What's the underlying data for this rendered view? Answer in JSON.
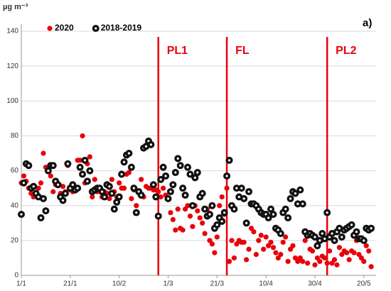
{
  "chart_data": {
    "type": "scatter",
    "y_label": "µg m⁻³",
    "panel_label": "a)",
    "xlim": [
      0,
      145
    ],
    "ylim": [
      0,
      140
    ],
    "xticks": [
      {
        "value": 0,
        "label": "1/1"
      },
      {
        "value": 20,
        "label": "21/1"
      },
      {
        "value": 40,
        "label": "10/2"
      },
      {
        "value": 60,
        "label": "1/3"
      },
      {
        "value": 80,
        "label": "21/3"
      },
      {
        "value": 100,
        "label": "10/4"
      },
      {
        "value": 120,
        "label": "30/4"
      },
      {
        "value": 140,
        "label": "20/5"
      }
    ],
    "yticks": [
      0,
      20,
      40,
      60,
      80,
      100,
      120,
      140
    ],
    "grid": true,
    "legend": "top-left",
    "vlines": [
      {
        "x": 56,
        "label": "PL1"
      },
      {
        "x": 84,
        "label": "FL"
      },
      {
        "x": 125,
        "label": "PL2"
      }
    ],
    "vline_color": "#e8000b",
    "x": [
      0,
      1,
      2,
      3,
      4,
      5,
      6,
      7,
      8,
      9,
      10,
      11,
      12,
      13,
      14,
      15,
      16,
      17,
      18,
      19,
      20,
      21,
      22,
      23,
      24,
      25,
      26,
      27,
      28,
      29,
      30,
      31,
      32,
      33,
      34,
      35,
      36,
      37,
      38,
      39,
      40,
      41,
      42,
      43,
      44,
      45,
      46,
      47,
      48,
      49,
      50,
      51,
      52,
      53,
      54,
      55,
      56,
      57,
      58,
      59,
      60,
      61,
      62,
      63,
      64,
      65,
      66,
      67,
      68,
      69,
      70,
      71,
      72,
      73,
      74,
      75,
      76,
      77,
      78,
      79,
      80,
      81,
      82,
      83,
      84,
      85,
      86,
      87,
      88,
      89,
      90,
      91,
      92,
      93,
      94,
      95,
      96,
      97,
      98,
      99,
      100,
      101,
      102,
      103,
      104,
      105,
      106,
      107,
      108,
      109,
      110,
      111,
      112,
      113,
      114,
      115,
      116,
      117,
      118,
      119,
      120,
      121,
      122,
      123,
      124,
      125,
      126,
      127,
      128,
      129,
      130,
      131,
      132,
      133,
      134,
      135,
      136,
      137,
      138,
      139,
      140,
      141,
      142,
      143
    ],
    "series": [
      {
        "name": "2020",
        "color": "#e8000b",
        "marker": "dot",
        "values": [
          53,
          57,
          54,
          50,
          47,
          45,
          46,
          50,
          53,
          70,
          62,
          60,
          57,
          48,
          52,
          52,
          47,
          51,
          48,
          63,
          49,
          48,
          50,
          66,
          66,
          80,
          53,
          64,
          68,
          45,
          55,
          48,
          50,
          45,
          48,
          47,
          44,
          55,
          48,
          45,
          53,
          50,
          50,
          58,
          59,
          44,
          49,
          40,
          48,
          55,
          45,
          51,
          50,
          50,
          49,
          49,
          48,
          45,
          50,
          46,
          44,
          36,
          32,
          26,
          38,
          27,
          26,
          38,
          40,
          34,
          28,
          40,
          37,
          33,
          30,
          24,
          38,
          20,
          18,
          13,
          22,
          40,
          45,
          35,
          50,
          8,
          20,
          10,
          18,
          20,
          19,
          19,
          9,
          15,
          27,
          25,
          12,
          20,
          23,
          15,
          22,
          17,
          19,
          16,
          13,
          10,
          12,
          19,
          22,
          8,
          15,
          17,
          10,
          8,
          10,
          8,
          20,
          7,
          15,
          14,
          6,
          10,
          8,
          11,
          10,
          7,
          14,
          7,
          9,
          6,
          16,
          12,
          14,
          13,
          9,
          14,
          13,
          20,
          12,
          10,
          8,
          17,
          14,
          5
        ]
      },
      {
        "name": "2018-2019",
        "color": "#111111",
        "marker": "ring",
        "values": [
          35,
          53,
          64,
          63,
          50,
          51,
          47,
          45,
          33,
          44,
          37,
          60,
          63,
          63,
          54,
          52,
          45,
          43,
          47,
          64,
          50,
          52,
          49,
          50,
          62,
          58,
          66,
          54,
          60,
          48,
          49,
          50,
          50,
          48,
          45,
          52,
          51,
          47,
          38,
          42,
          45,
          58,
          65,
          69,
          70,
          62,
          50,
          36,
          48,
          46,
          73,
          74,
          77,
          75,
          52,
          45,
          34,
          55,
          62,
          57,
          44,
          48,
          52,
          59,
          67,
          63,
          50,
          46,
          62,
          58,
          40,
          56,
          59,
          45,
          47,
          38,
          34,
          35,
          40,
          27,
          29,
          33,
          31,
          36,
          57,
          66,
          40,
          38,
          50,
          45,
          50,
          44,
          30,
          48,
          41,
          41,
          40,
          38,
          36,
          35,
          35,
          33,
          38,
          35,
          27,
          26,
          24,
          36,
          38,
          33,
          44,
          48,
          47,
          41,
          49,
          41,
          25,
          23,
          24,
          23,
          22,
          17,
          20,
          24,
          21,
          36,
          22,
          24,
          20,
          25,
          27,
          22,
          26,
          27,
          28,
          29,
          23,
          25,
          21,
          21,
          20,
          27,
          26,
          27
        ]
      }
    ]
  }
}
